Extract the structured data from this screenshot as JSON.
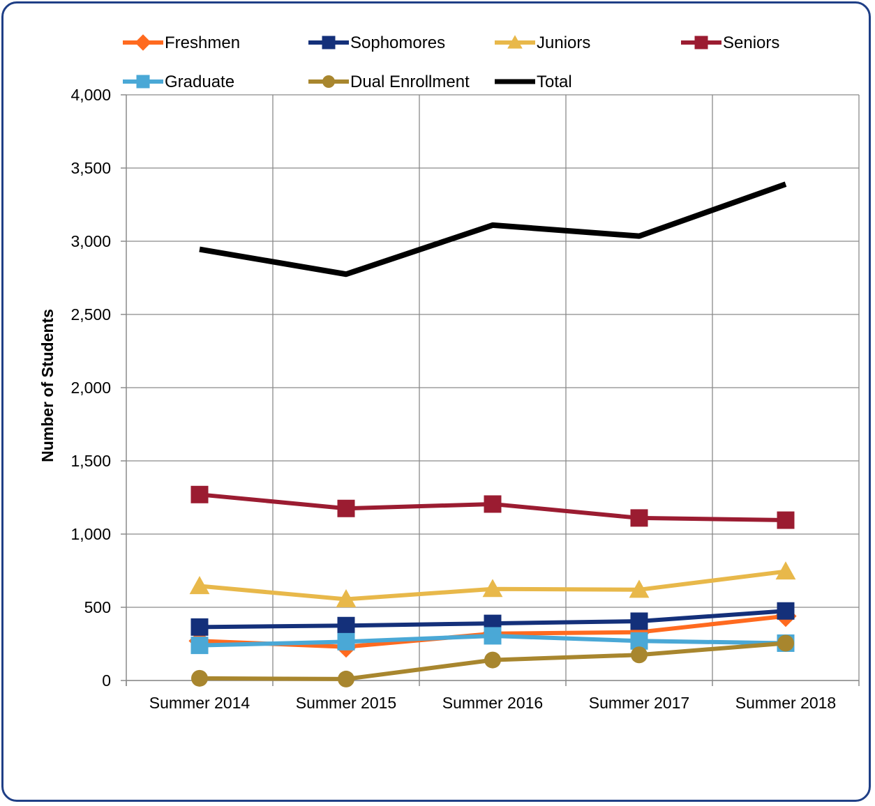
{
  "chart_data": {
    "type": "line",
    "title": "",
    "xlabel": "",
    "ylabel": "Number of Students",
    "categories": [
      "Summer 2014",
      "Summer 2015",
      "Summer 2016",
      "Summer 2017",
      "Summer 2018"
    ],
    "ylim": [
      0,
      4000
    ],
    "yticks": [
      0,
      500,
      1000,
      1500,
      2000,
      2500,
      3000,
      3500,
      4000
    ],
    "ytick_labels": [
      "0",
      "500",
      "1,000",
      "1,500",
      "2,000",
      "2,500",
      "3,000",
      "3,500",
      "4,000"
    ],
    "grid": true,
    "legend_position": "top",
    "series": [
      {
        "name": "Freshmen",
        "color": "#ff6a1f",
        "marker": "diamond",
        "values": [
          270,
          230,
          320,
          330,
          440
        ]
      },
      {
        "name": "Sophomores",
        "color": "#14307a",
        "marker": "square",
        "values": [
          365,
          375,
          390,
          405,
          475
        ]
      },
      {
        "name": "Juniors",
        "color": "#e8b84a",
        "marker": "triangle",
        "values": [
          645,
          555,
          625,
          620,
          745
        ]
      },
      {
        "name": "Seniors",
        "color": "#9b1c31",
        "marker": "square",
        "values": [
          1270,
          1175,
          1205,
          1110,
          1095
        ]
      },
      {
        "name": "Graduate",
        "color": "#4aa8d6",
        "marker": "square",
        "values": [
          240,
          265,
          305,
          270,
          255
        ]
      },
      {
        "name": "Dual Enrollment",
        "color": "#a8862e",
        "marker": "circle",
        "values": [
          15,
          10,
          140,
          175,
          255
        ]
      },
      {
        "name": "Total",
        "color": "#000000",
        "marker": "none",
        "values": [
          2945,
          2775,
          3110,
          3035,
          3390
        ]
      }
    ]
  }
}
